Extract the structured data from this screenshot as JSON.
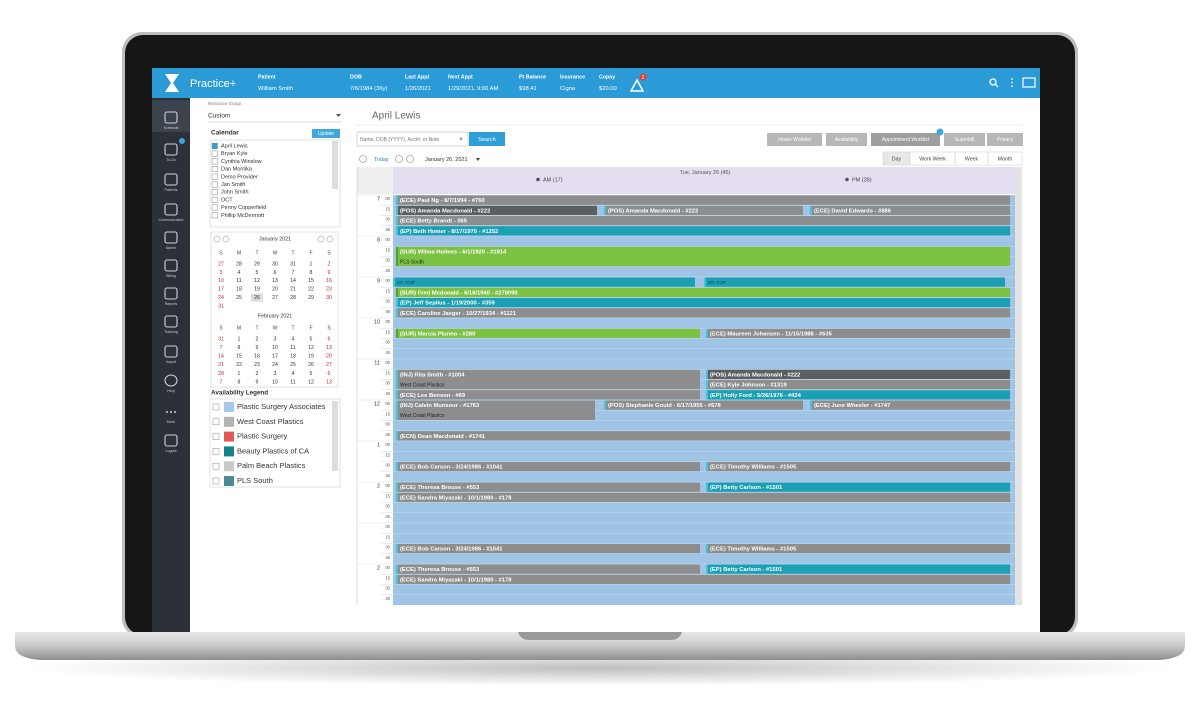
{
  "topbar": {
    "brand": "Practice+",
    "fields": [
      {
        "label": "Patient",
        "value": "William Smith"
      },
      {
        "label": "DOB",
        "value": "7/6/1984 (36y)"
      },
      {
        "label": "Last Appt",
        "value": "1/26/2021"
      },
      {
        "label": "Next Appt",
        "value": "1/29/2021, 9:00 AM"
      },
      {
        "label": "Pt Balance",
        "value": "$98.41"
      },
      {
        "label": "Insurance",
        "value": "Cigna"
      },
      {
        "label": "Copay",
        "value": "$20.00"
      }
    ],
    "alert_count": "2"
  },
  "nav": [
    "Schedule",
    "To-Do",
    "Patients",
    "Communication",
    "Admin",
    "Billing",
    "Reports",
    "Tracking",
    "Import",
    "Help",
    "More",
    "Logout"
  ],
  "sidebar": {
    "resource_group_label": "Resource Group",
    "resource_group": "Custom",
    "calendar_label": "Calendar",
    "update": "Update",
    "providers": [
      "April Lewis",
      "Bryan Kyle",
      "Cynthia Winslow",
      "Dan Montika",
      "Demo Provider",
      "Jan Smith",
      "John Smith",
      "OCT",
      "Penny Copperfield",
      "Phillip McDermott"
    ],
    "weekdays": [
      "S",
      "M",
      "T",
      "W",
      "T",
      "F",
      "S"
    ],
    "mini_calendars": [
      {
        "title": "January 2021",
        "weeks": [
          [
            "27",
            "28",
            "29",
            "30",
            "31",
            "1",
            "2"
          ],
          [
            "3",
            "4",
            "5",
            "6",
            "7",
            "8",
            "9"
          ],
          [
            "10",
            "11",
            "12",
            "13",
            "14",
            "15",
            "16"
          ],
          [
            "17",
            "18",
            "19",
            "20",
            "21",
            "22",
            "23"
          ],
          [
            "24",
            "25",
            "26",
            "27",
            "28",
            "29",
            "30"
          ],
          [
            "31"
          ]
        ]
      },
      {
        "title": "February 2021",
        "weeks": [
          [
            "31",
            "1",
            "2",
            "3",
            "4",
            "5",
            "6"
          ],
          [
            "7",
            "8",
            "9",
            "10",
            "11",
            "12",
            "13"
          ],
          [
            "14",
            "15",
            "16",
            "17",
            "18",
            "19",
            "20"
          ],
          [
            "21",
            "22",
            "23",
            "24",
            "25",
            "26",
            "27"
          ],
          [
            "28",
            "1",
            "2",
            "3",
            "4",
            "5",
            "6"
          ],
          [
            "7",
            "8",
            "9",
            "10",
            "11",
            "12",
            "13"
          ]
        ]
      }
    ],
    "legend_title": "Availability Legend",
    "legend": [
      {
        "name": "Plastic Surgery Associates",
        "color": "#a9c9ea"
      },
      {
        "name": "West Coast Plastics",
        "color": "#b3b3b3"
      },
      {
        "name": "Plastic Surgery",
        "color": "#e2585a"
      },
      {
        "name": "Beauty Plastics of CA",
        "color": "#16828f"
      },
      {
        "name": "Palm Beach Plastics",
        "color": "#c9c9c9"
      },
      {
        "name": "PLS South",
        "color": "#4b8996"
      }
    ]
  },
  "main": {
    "title": "April Lewis",
    "search_placeholder": "Name, DOB (YYYY), Acct#, or Note",
    "search_button": "Search",
    "toolbar": [
      "Intake Worklist",
      "Availability",
      "Appointment Worklist",
      "Superbill",
      "Privacy"
    ],
    "today": "Today",
    "date": "January 26, 2021",
    "views": [
      "Day",
      "Work Week",
      "Week",
      "Month"
    ],
    "day_header": "Tue, January 26 (45)",
    "am": "AM (17)",
    "pm": "PM (28)",
    "schedule": {
      "hours": [
        "7",
        "8",
        "9",
        "10",
        "11",
        "12",
        "1",
        "2",
        null,
        "2"
      ],
      "minutes": [
        "00",
        "15",
        "30",
        "45"
      ],
      "appointments": [
        {
          "text": "(ECE) Paul Ng - 8/7/1994 - #760"
        },
        {
          "text": "(POS) Amanda Macdonald - #222"
        },
        {
          "text": "(POS) Amanda Macdonald - #222"
        },
        {
          "text": "(ECE) David Edwards - #886"
        },
        {
          "text": "(ECE) Betty Brandt - #65"
        },
        {
          "text": "(EP) Beth Homer - 8/17/1970 - #1252"
        },
        {
          "text": "(SUR) Wilma Holmes - 6/1/1920 - #1914",
          "detail": "PLS South"
        },
        {
          "text": "EP, FUP"
        },
        {
          "text": "EP, FUP"
        },
        {
          "text": "(SUR) Fred Mcdonald - 6/18/1940 - #278090"
        },
        {
          "text": "(EP) Jeff Sepilus - 1/19/2000 - #359"
        },
        {
          "text": "(ECE) Caroline Jaeger - 10/27/1934 - #1121"
        },
        {
          "text": "(SUR) Marcia Plunno - #280"
        },
        {
          "text": "(ECE) Maureen Johansen - 11/15/1988 - #635"
        },
        {
          "text": "(INJ) Rita Smith - #1004",
          "detail": "West Coast Plastics"
        },
        {
          "text": "(ECE) Lee Benson - #69"
        },
        {
          "text": "(POS) Amanda Macdonald - #222"
        },
        {
          "text": "(ECE) Kyle Johnson - #1319"
        },
        {
          "text": "(EP) Holly Ford - 5/26/1976 - #424"
        },
        {
          "text": "(INJ) Calvin Munsour - #1763",
          "detail": "West Coast Plastics"
        },
        {
          "text": "(POS) Stephanie Gould - 6/17/1955 - #578"
        },
        {
          "text": "(ECE) June Wheeler - #1747"
        },
        {
          "text": "(ECN) Dean Macdonald - #1741"
        },
        {
          "text": "(ECE) Bob Carson - 3/24/1986 - #1041"
        },
        {
          "text": "(ECE) Timothy Williams - #1505"
        },
        {
          "text": "(ECE) Theresa Brouse - #553"
        },
        {
          "text": "(EP) Betty Carlson - #1501"
        },
        {
          "text": "(ECE) Sandra Miyazaki - 10/1/1980 - #178"
        },
        {
          "text": "(ECE) Bob Carson - 3/24/1986 - #1041"
        },
        {
          "text": "(ECE) Timothy Williams - #1505"
        },
        {
          "text": "(ECE) Theresa Brouse - #553"
        },
        {
          "text": "(EP) Betty Carlson - #1501"
        },
        {
          "text": "(ECE) Sandra Miyazaki - 10/1/1980 - #178"
        }
      ]
    }
  }
}
